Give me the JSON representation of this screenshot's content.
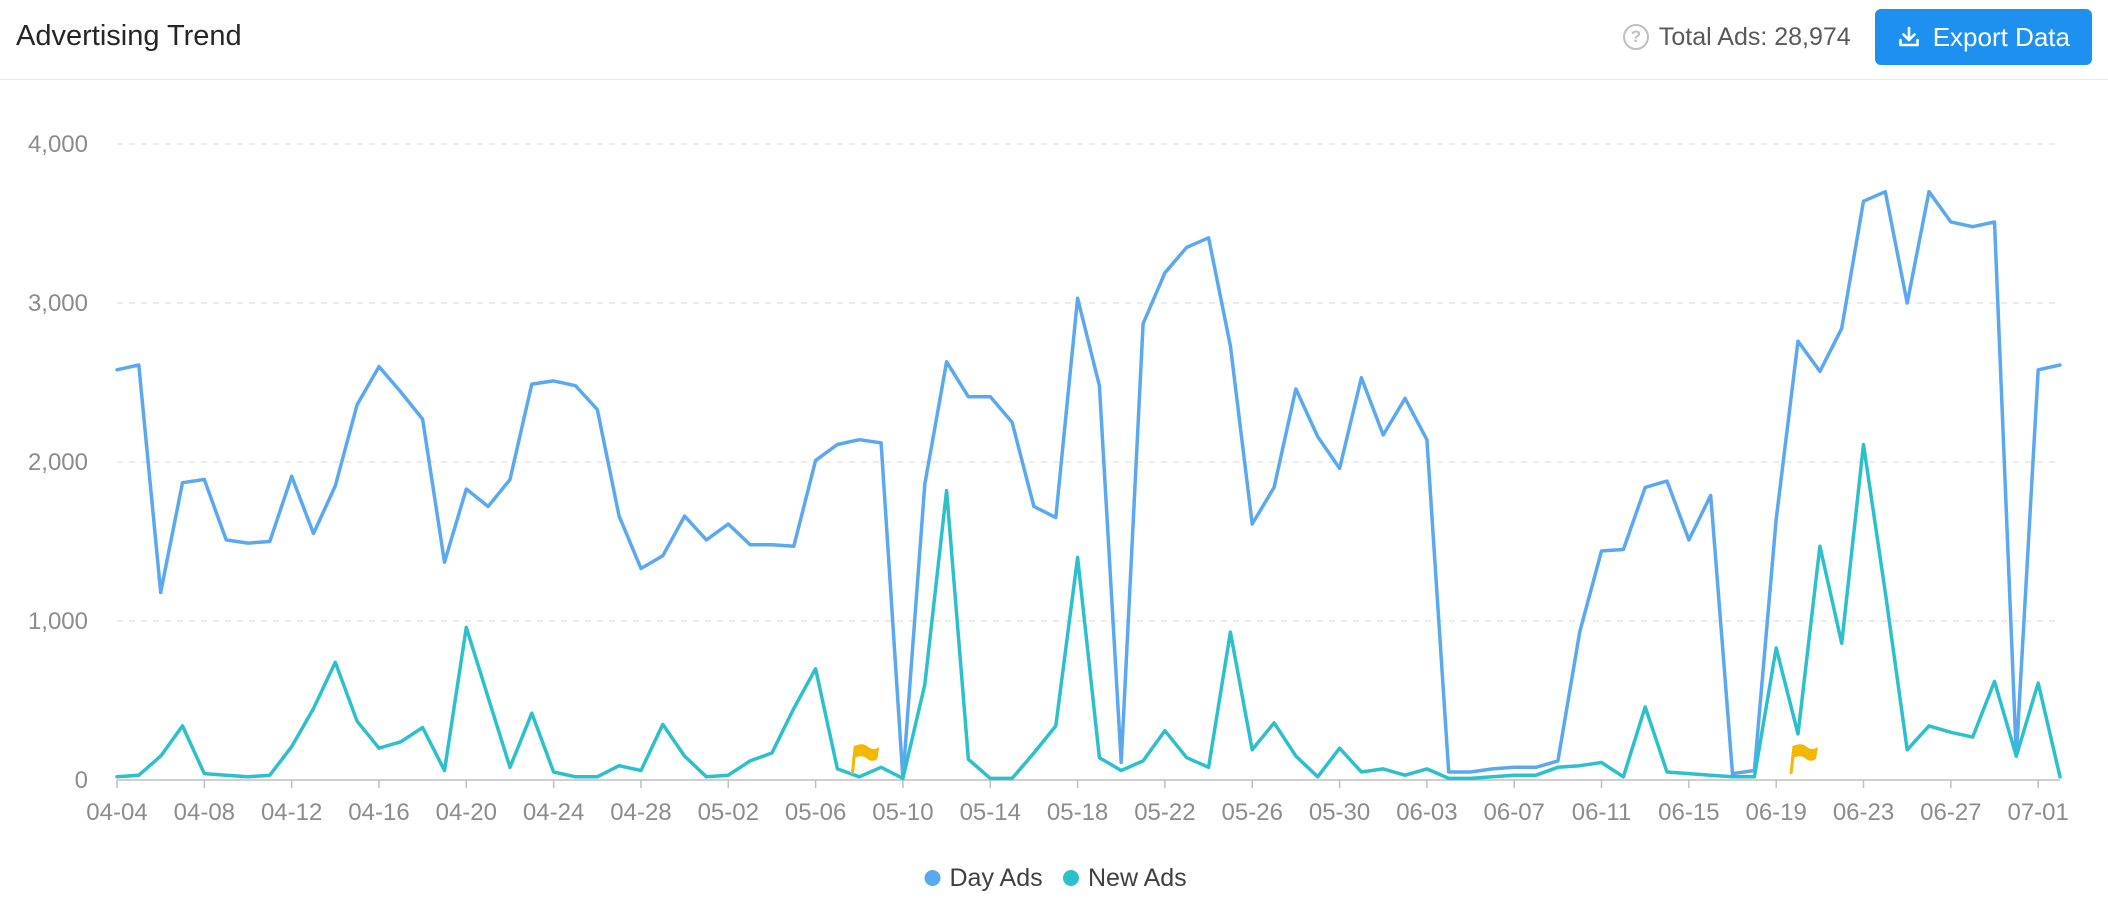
{
  "header": {
    "title": "Advertising Trend",
    "total_label": "Total Ads: 28,974",
    "export_label": "Export Data",
    "help_icon": "question-circle-icon",
    "export_icon": "download-icon"
  },
  "colors": {
    "day": "#5aa9f0",
    "new": "#2cc0cc",
    "accent": "#1e90f0",
    "flag": "#f5b800"
  },
  "chart_data": {
    "type": "line",
    "x": [
      "04-04",
      "04-05",
      "04-06",
      "04-07",
      "04-08",
      "04-09",
      "04-10",
      "04-11",
      "04-12",
      "04-13",
      "04-14",
      "04-15",
      "04-16",
      "04-17",
      "04-18",
      "04-19",
      "04-20",
      "04-21",
      "04-22",
      "04-23",
      "04-24",
      "04-25",
      "04-26",
      "04-27",
      "04-28",
      "04-29",
      "04-30",
      "05-01",
      "05-02",
      "05-03",
      "05-04",
      "05-05",
      "05-06",
      "05-07",
      "05-08",
      "05-09",
      "05-10",
      "05-11",
      "05-12",
      "05-13",
      "05-14",
      "05-15",
      "05-16",
      "05-17",
      "05-18",
      "05-19",
      "05-20",
      "05-21",
      "05-22",
      "05-23",
      "05-24",
      "05-25",
      "05-26",
      "05-27",
      "05-28",
      "05-29",
      "05-30",
      "05-31",
      "06-01",
      "06-02",
      "06-03",
      "06-04",
      "06-05",
      "06-06",
      "06-07",
      "06-08",
      "06-09",
      "06-10",
      "06-11",
      "06-12",
      "06-13",
      "06-14",
      "06-15",
      "06-16",
      "06-17",
      "06-18",
      "06-19",
      "06-20",
      "06-21",
      "06-22",
      "06-23",
      "06-24",
      "06-25",
      "06-26",
      "06-27",
      "06-28",
      "06-29",
      "06-30",
      "07-01",
      "07-02"
    ],
    "tick_labels": [
      "04-04",
      "04-08",
      "04-12",
      "04-16",
      "04-20",
      "04-24",
      "04-28",
      "05-02",
      "05-06",
      "05-10",
      "05-14",
      "05-18",
      "05-22",
      "05-26",
      "05-30",
      "06-03",
      "06-07",
      "06-11",
      "06-15",
      "06-19",
      "06-23",
      "06-27",
      "07-01"
    ],
    "ylim": [
      0,
      4000
    ],
    "yticks": [
      "0",
      "1,000",
      "2,000",
      "3,000",
      "4,000"
    ],
    "grid": true,
    "legend_position": "bottom",
    "series": [
      {
        "name": "Day Ads",
        "values": [
          2580,
          2610,
          1180,
          1870,
          1890,
          1510,
          1490,
          1500,
          1910,
          1550,
          1850,
          2360,
          2600,
          2440,
          2270,
          1370,
          1830,
          1720,
          1890,
          2490,
          2510,
          2480,
          2330,
          1660,
          1330,
          1410,
          1660,
          1510,
          1610,
          1480,
          1480,
          1470,
          2010,
          2110,
          2140,
          2120,
          10,
          1860,
          2630,
          2410,
          2410,
          2250,
          1720,
          1650,
          3030,
          2480,
          110,
          2870,
          3190,
          3350,
          3410,
          2730,
          1610,
          1840,
          2460,
          2160,
          1960,
          2530,
          2170,
          2400,
          2140,
          50,
          50,
          70,
          80,
          80,
          120,
          930,
          1440,
          1450,
          1840,
          1880,
          1510,
          1790,
          40,
          60,
          1640,
          2760,
          2570,
          2840,
          3640,
          3700,
          3000,
          3700,
          3510,
          3480,
          3510,
          150,
          2580,
          2610
        ]
      },
      {
        "name": "New Ads",
        "values": [
          20,
          30,
          150,
          340,
          40,
          30,
          20,
          30,
          210,
          450,
          740,
          370,
          200,
          240,
          330,
          60,
          960,
          520,
          80,
          420,
          50,
          20,
          20,
          90,
          60,
          350,
          150,
          20,
          30,
          120,
          170,
          450,
          700,
          70,
          20,
          80,
          10,
          600,
          1820,
          130,
          10,
          10,
          170,
          340,
          1400,
          140,
          60,
          120,
          310,
          140,
          80,
          930,
          190,
          360,
          150,
          20,
          200,
          50,
          70,
          30,
          70,
          10,
          10,
          20,
          30,
          30,
          80,
          90,
          110,
          20,
          460,
          50,
          40,
          30,
          20,
          20,
          830,
          290,
          1470,
          860,
          2110,
          1180,
          190,
          340,
          300,
          270,
          620,
          150,
          610,
          20
        ]
      }
    ],
    "flags": [
      {
        "x": "05-08",
        "series": "New Ads"
      },
      {
        "x": "06-20",
        "series": "Day Ads"
      }
    ]
  }
}
